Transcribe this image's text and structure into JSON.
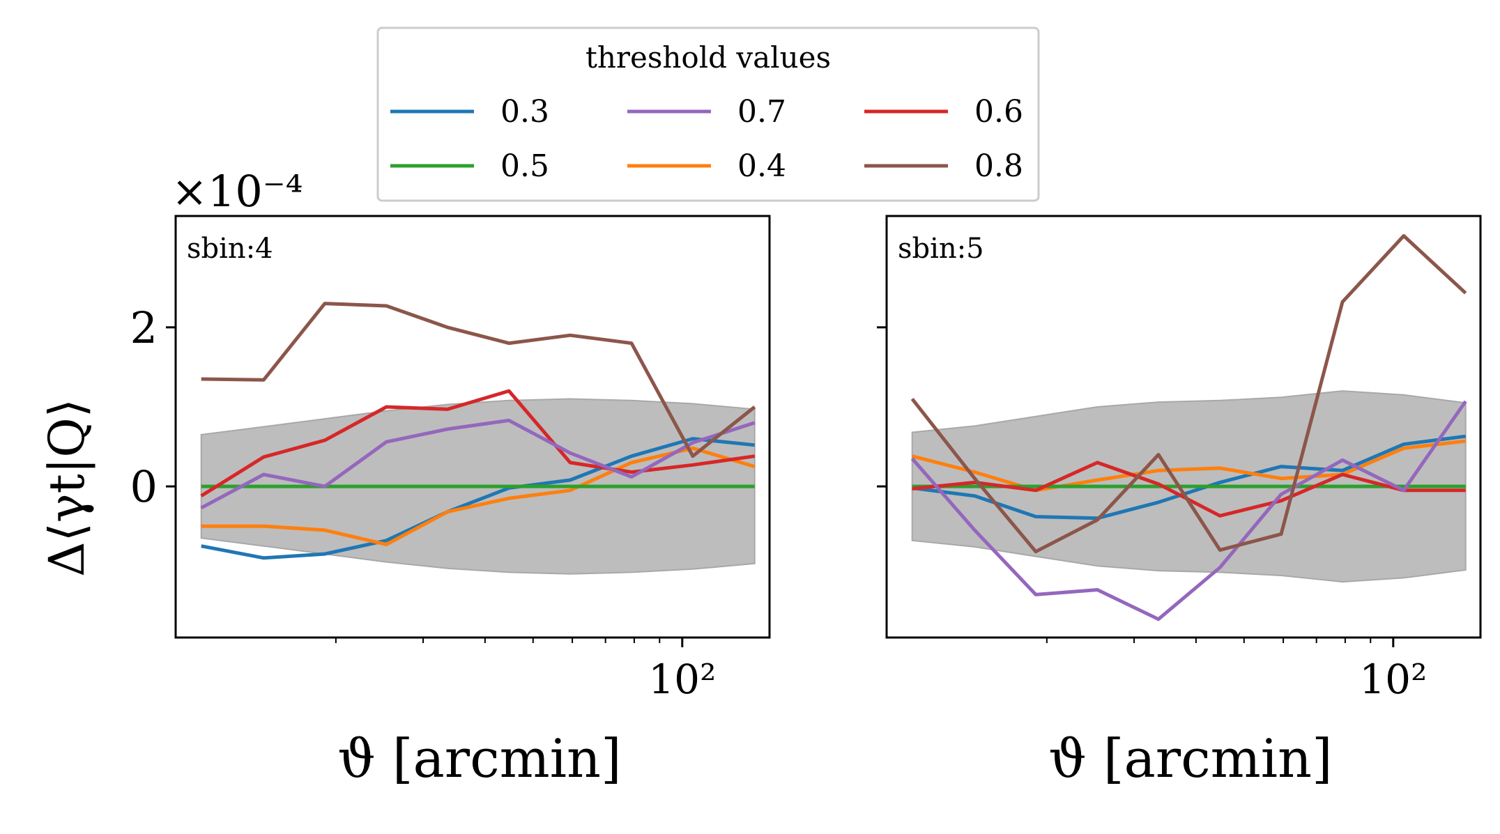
{
  "legend": {
    "title": "threshold values",
    "entries": [
      {
        "label": "0.3",
        "color": "#1f77b4"
      },
      {
        "label": "0.5",
        "color": "#2ca02c"
      },
      {
        "label": "0.7",
        "color": "#9467bd"
      },
      {
        "label": "0.4",
        "color": "#ff7f0e"
      },
      {
        "label": "0.6",
        "color": "#d62728"
      },
      {
        "label": "0.8",
        "color": "#8c564b"
      }
    ]
  },
  "y_axis": {
    "label": "Δ⟨γt|Q⟩",
    "offset_text": "×10⁻⁴",
    "ticks": [
      {
        "value": 0,
        "label": "0"
      },
      {
        "value": 2,
        "label": "2"
      }
    ]
  },
  "x_axis": {
    "label": "ϑ [arcmin]",
    "major_tick_label": "10²"
  },
  "chart_data": [
    {
      "type": "line",
      "panel_label": "sbin:4",
      "xlabel": "ϑ [arcmin]",
      "ylabel": "Δ⟨γt|Q⟩ ×10⁻⁴",
      "x_scale": "log",
      "x": [
        10.7,
        14.3,
        19.0,
        25.3,
        33.6,
        44.7,
        59.4,
        79.0,
        105.0,
        140.0
      ],
      "ylim": [
        -1.9,
        3.4
      ],
      "band": {
        "upper": [
          0.65,
          0.75,
          0.85,
          0.95,
          1.03,
          1.08,
          1.1,
          1.08,
          1.04,
          0.97
        ],
        "lower": [
          -0.65,
          -0.75,
          -0.85,
          -0.95,
          -1.03,
          -1.08,
          -1.1,
          -1.08,
          -1.04,
          -0.97
        ],
        "color": "#bdbdbd"
      },
      "series": [
        {
          "name": "0.3",
          "color": "#1f77b4",
          "values": [
            -0.75,
            -0.9,
            -0.85,
            -0.68,
            -0.32,
            -0.02,
            0.08,
            0.38,
            0.6,
            0.52
          ]
        },
        {
          "name": "0.4",
          "color": "#ff7f0e",
          "values": [
            -0.5,
            -0.5,
            -0.55,
            -0.73,
            -0.32,
            -0.15,
            -0.05,
            0.3,
            0.48,
            0.25
          ]
        },
        {
          "name": "0.5",
          "color": "#2ca02c",
          "values": [
            0,
            0,
            0,
            0,
            0,
            0,
            0,
            0,
            0,
            0
          ]
        },
        {
          "name": "0.6",
          "color": "#d62728",
          "values": [
            -0.12,
            0.37,
            0.58,
            1.0,
            0.97,
            1.2,
            0.3,
            0.18,
            0.27,
            0.38
          ]
        },
        {
          "name": "0.7",
          "color": "#9467bd",
          "values": [
            -0.27,
            0.15,
            0.0,
            0.56,
            0.72,
            0.83,
            0.42,
            0.12,
            0.55,
            0.8
          ]
        },
        {
          "name": "0.8",
          "color": "#8c564b",
          "values": [
            1.35,
            1.34,
            2.3,
            2.27,
            2.0,
            1.8,
            1.9,
            1.8,
            0.38,
            1.0
          ]
        }
      ]
    },
    {
      "type": "line",
      "panel_label": "sbin:5",
      "xlabel": "ϑ [arcmin]",
      "ylabel": "Δ⟨γt|Q⟩ ×10⁻⁴",
      "x_scale": "log",
      "x": [
        10.7,
        14.3,
        19.0,
        25.3,
        33.6,
        44.7,
        59.4,
        79.0,
        105.0,
        140.0
      ],
      "ylim": [
        -1.9,
        3.4
      ],
      "band": {
        "upper": [
          0.68,
          0.76,
          0.88,
          1.0,
          1.06,
          1.08,
          1.12,
          1.2,
          1.15,
          1.05
        ],
        "lower": [
          -0.68,
          -0.76,
          -0.88,
          -1.0,
          -1.06,
          -1.08,
          -1.12,
          -1.2,
          -1.15,
          -1.05
        ],
        "color": "#bdbdbd"
      },
      "series": [
        {
          "name": "0.3",
          "color": "#1f77b4",
          "values": [
            -0.02,
            -0.12,
            -0.38,
            -0.4,
            -0.2,
            0.05,
            0.25,
            0.2,
            0.53,
            0.63
          ]
        },
        {
          "name": "0.4",
          "color": "#ff7f0e",
          "values": [
            0.38,
            0.18,
            -0.05,
            0.08,
            0.2,
            0.23,
            0.1,
            0.15,
            0.48,
            0.57
          ]
        },
        {
          "name": "0.5",
          "color": "#2ca02c",
          "values": [
            0,
            0,
            0,
            0,
            0,
            0,
            0,
            0,
            0,
            0
          ]
        },
        {
          "name": "0.6",
          "color": "#d62728",
          "values": [
            -0.03,
            0.05,
            -0.05,
            0.3,
            0.03,
            -0.37,
            -0.18,
            0.15,
            -0.05,
            -0.05
          ]
        },
        {
          "name": "0.7",
          "color": "#9467bd",
          "values": [
            0.35,
            -0.55,
            -1.36,
            -1.3,
            -1.67,
            -1.02,
            -0.1,
            0.33,
            -0.05,
            1.07
          ]
        },
        {
          "name": "0.8",
          "color": "#8c564b",
          "values": [
            1.1,
            0.1,
            -0.82,
            -0.42,
            0.4,
            -0.8,
            -0.6,
            2.32,
            3.15,
            2.43
          ]
        }
      ]
    }
  ]
}
